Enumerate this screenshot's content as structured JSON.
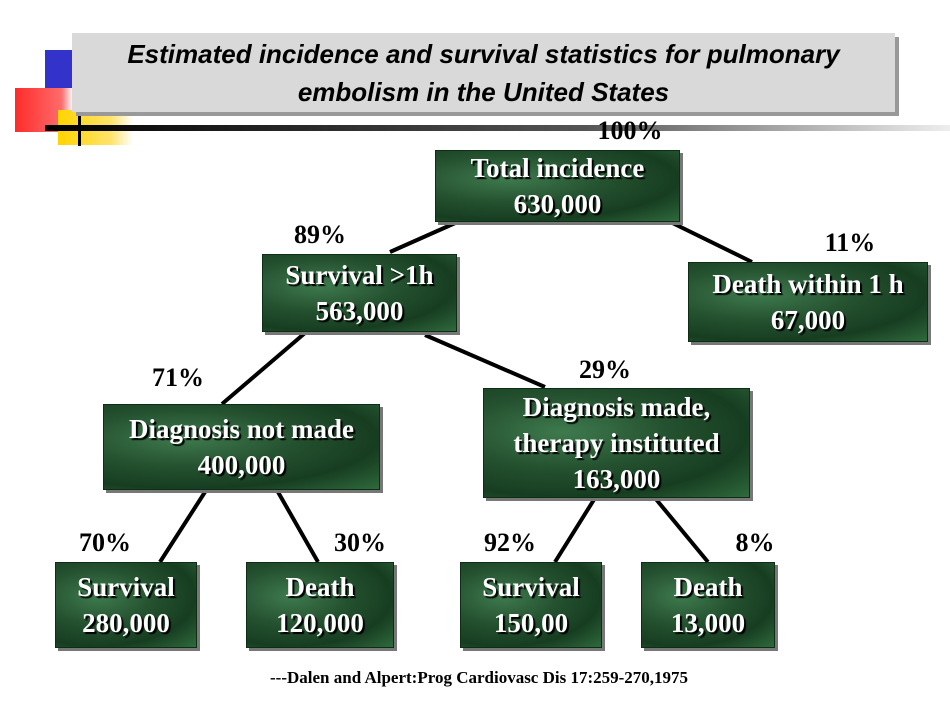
{
  "title": "Estimated incidence and survival statistics for pulmonary embolism in the United States",
  "nodes": [
    {
      "label": [
        "Total incidence"
      ],
      "count": "630,000",
      "percent": "100%"
    },
    {
      "label": [
        "Survival >1h"
      ],
      "count": "563,000",
      "percent": "89%"
    },
    {
      "label": [
        "Death within 1 h"
      ],
      "count": "67,000",
      "percent": "11%"
    },
    {
      "label": [
        "Diagnosis not made"
      ],
      "count": "400,000",
      "percent": "71%"
    },
    {
      "label": [
        "Diagnosis made,",
        "therapy instituted"
      ],
      "count": "163,000",
      "percent": "29%"
    },
    {
      "label": [
        "Survival"
      ],
      "count": "280,000",
      "percent": "70%"
    },
    {
      "label": [
        "Death"
      ],
      "count": "120,000",
      "percent": "30%"
    },
    {
      "label": [
        "Survival"
      ],
      "count": "150,00",
      "percent": "92%"
    },
    {
      "label": [
        "Death"
      ],
      "count": "13,000",
      "percent": "8%"
    }
  ],
  "citation": "---Dalen and Alpert:Prog Cardiovasc Dis 17:259-270,1975"
}
